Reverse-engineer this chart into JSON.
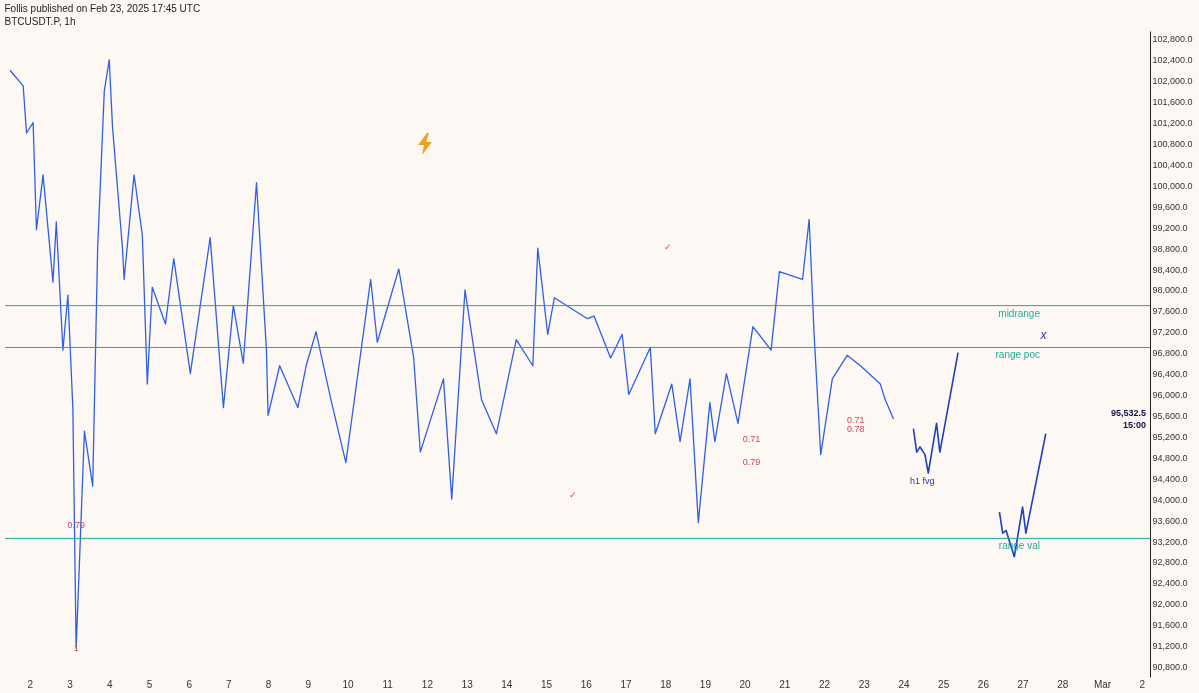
{
  "chart_data": {
    "type": "line",
    "title": "Follis published on Feb 23, 2025 17:45 UTC",
    "subtitle": "BTCUSDT.P, 1h",
    "xlim": [
      "2025-02-01T09:00",
      "2025-03-02T05:00"
    ],
    "xticks": [
      {
        "value": "2025-02-02T00:00",
        "label": "2"
      },
      {
        "value": "2025-02-03T00:00",
        "label": "3"
      },
      {
        "value": "2025-02-04T00:00",
        "label": "4"
      },
      {
        "value": "2025-02-05T00:00",
        "label": "5"
      },
      {
        "value": "2025-02-06T00:00",
        "label": "6"
      },
      {
        "value": "2025-02-07T00:00",
        "label": "7"
      },
      {
        "value": "2025-02-08T00:00",
        "label": "8"
      },
      {
        "value": "2025-02-09T00:00",
        "label": "9"
      },
      {
        "value": "2025-02-10T00:00",
        "label": "10"
      },
      {
        "value": "2025-02-11T00:00",
        "label": "11"
      },
      {
        "value": "2025-02-12T00:00",
        "label": "12"
      },
      {
        "value": "2025-02-13T00:00",
        "label": "13"
      },
      {
        "value": "2025-02-14T00:00",
        "label": "14"
      },
      {
        "value": "2025-02-15T00:00",
        "label": "15"
      },
      {
        "value": "2025-02-16T00:00",
        "label": "16"
      },
      {
        "value": "2025-02-17T00:00",
        "label": "17"
      },
      {
        "value": "2025-02-18T00:00",
        "label": "18"
      },
      {
        "value": "2025-02-19T00:00",
        "label": "19"
      },
      {
        "value": "2025-02-20T00:00",
        "label": "20"
      },
      {
        "value": "2025-02-21T00:00",
        "label": "21"
      },
      {
        "value": "2025-02-22T00:00",
        "label": "22"
      },
      {
        "value": "2025-02-23T00:00",
        "label": "23"
      },
      {
        "value": "2025-02-24T00:00",
        "label": "24"
      },
      {
        "value": "2025-02-25T00:00",
        "label": "25"
      },
      {
        "value": "2025-02-26T00:00",
        "label": "26"
      },
      {
        "value": "2025-02-27T00:00",
        "label": "27"
      },
      {
        "value": "2025-02-28T00:00",
        "label": "28"
      },
      {
        "value": "2025-03-01T00:00",
        "label": "Mar"
      },
      {
        "value": "2025-03-02T00:00",
        "label": "2"
      }
    ],
    "ylim": [
      90600,
      102950
    ],
    "yticks": [
      {
        "value": 90800,
        "label": "90,800.0"
      },
      {
        "value": 91200,
        "label": "91,200.0"
      },
      {
        "value": 91600,
        "label": "91,600.0"
      },
      {
        "value": 92000,
        "label": "92,000.0"
      },
      {
        "value": 92400,
        "label": "92,400.0"
      },
      {
        "value": 92800,
        "label": "92,800.0"
      },
      {
        "value": 93200,
        "label": "93,200.0"
      },
      {
        "value": 93600,
        "label": "93,600.0"
      },
      {
        "value": 94000,
        "label": "94,000.0"
      },
      {
        "value": 94400,
        "label": "94,400.0"
      },
      {
        "value": 94800,
        "label": "94,800.0"
      },
      {
        "value": 95200,
        "label": "95,200.0"
      },
      {
        "value": 95600,
        "label": "95,600.0"
      },
      {
        "value": 96000,
        "label": "96,000.0"
      },
      {
        "value": 96400,
        "label": "96,400.0"
      },
      {
        "value": 96800,
        "label": "96,800.0"
      },
      {
        "value": 97200,
        "label": "97,200.0"
      },
      {
        "value": 97600,
        "label": "97,600.0"
      },
      {
        "value": 98000,
        "label": "98,000.0"
      },
      {
        "value": 98400,
        "label": "98,400.0"
      },
      {
        "value": 98800,
        "label": "98,800.0"
      },
      {
        "value": 99200,
        "label": "99,200.0"
      },
      {
        "value": 99600,
        "label": "99,600.0"
      },
      {
        "value": 100000,
        "label": "100,000.0"
      },
      {
        "value": 100400,
        "label": "100,400.0"
      },
      {
        "value": 100800,
        "label": "100,800.0"
      },
      {
        "value": 101200,
        "label": "101,200.0"
      },
      {
        "value": 101600,
        "label": "101,600.0"
      },
      {
        "value": 102000,
        "label": "102,000.0"
      },
      {
        "value": 102400,
        "label": "102,400.0"
      },
      {
        "value": 102800,
        "label": "102,800.0"
      }
    ],
    "series": [
      {
        "color": "#2f5fe8",
        "x": [
          "2025-02-01T12:00",
          "2025-02-01T20:00",
          "2025-02-01T22:00",
          "2025-02-02T02:00",
          "2025-02-02T04:00",
          "2025-02-02T08:00",
          "2025-02-02T14:00",
          "2025-02-02T16:00",
          "2025-02-02T20:00",
          "2025-02-02T23:00",
          "2025-02-03T02:00",
          "2025-02-03T04:00",
          "2025-02-03T06:00",
          "2025-02-03T09:00",
          "2025-02-03T14:00",
          "2025-02-03T17:00",
          "2025-02-03T21:00",
          "2025-02-04T00:00",
          "2025-02-04T02:00",
          "2025-02-04T08:00",
          "2025-02-04T09:00",
          "2025-02-04T15:00",
          "2025-02-04T20:00",
          "2025-02-04T23:00",
          "2025-02-05T02:00",
          "2025-02-05T10:00",
          "2025-02-05T15:00",
          "2025-02-06T01:00",
          "2025-02-06T13:00",
          "2025-02-06T21:00",
          "2025-02-07T03:00",
          "2025-02-07T09:00",
          "2025-02-07T17:00",
          "2025-02-07T23:00",
          "2025-02-08T00:00",
          "2025-02-08T07:00",
          "2025-02-08T18:00",
          "2025-02-08T23:00",
          "2025-02-09T05:00",
          "2025-02-09T14:00",
          "2025-02-09T23:00",
          "2025-02-10T14:00",
          "2025-02-10T18:00",
          "2025-02-11T07:00",
          "2025-02-11T16:00",
          "2025-02-11T20:00",
          "2025-02-12T10:00",
          "2025-02-12T15:00",
          "2025-02-12T23:00",
          "2025-02-13T09:00",
          "2025-02-13T18:00",
          "2025-02-14T06:00",
          "2025-02-14T16:00",
          "2025-02-14T19:00",
          "2025-02-15T01:00",
          "2025-02-15T05:00",
          "2025-02-16T01:00",
          "2025-02-16T05:00",
          "2025-02-16T15:00",
          "2025-02-16T22:00",
          "2025-02-17T02:00",
          "2025-02-17T15:00",
          "2025-02-17T18:00",
          "2025-02-18T04:00",
          "2025-02-18T09:00",
          "2025-02-18T15:00",
          "2025-02-18T20:00",
          "2025-02-19T03:00",
          "2025-02-19T06:00",
          "2025-02-19T13:00",
          "2025-02-19T20:00",
          "2025-02-20T05:00",
          "2025-02-20T16:00",
          "2025-02-20T21:00",
          "2025-02-21T11:00",
          "2025-02-21T15:00",
          "2025-02-21T18:00",
          "2025-02-21T22:00",
          "2025-02-22T05:00",
          "2025-02-22T14:00",
          "2025-02-22T22:00",
          "2025-02-23T10:00",
          "2025-02-23T13:00",
          "2025-02-23T18:00"
        ],
        "values": [
          102200,
          101900,
          101000,
          101200,
          99150,
          100200,
          98150,
          99300,
          96850,
          97900,
          95750,
          91150,
          92800,
          95300,
          94250,
          98800,
          101800,
          102400,
          101100,
          98800,
          98200,
          100200,
          99050,
          96200,
          98050,
          97350,
          98600,
          96400,
          99000,
          95750,
          97700,
          96600,
          100050,
          96850,
          95600,
          96550,
          95750,
          96550,
          97200,
          95900,
          94700,
          98200,
          97000,
          98400,
          96700,
          94900,
          96300,
          94000,
          98000,
          95900,
          95250,
          97050,
          96550,
          98800,
          97150,
          97850,
          97450,
          97500,
          96700,
          97150,
          96000,
          96900,
          95250,
          96200,
          95100,
          96300,
          93550,
          95850,
          95100,
          96400,
          95450,
          97300,
          96850,
          98350,
          98200,
          99350,
          97150,
          94850,
          96300,
          96750,
          96550,
          96200,
          95900,
          95532.5
        ]
      },
      {
        "color": "#1f3fbf",
        "x": [
          "2025-02-24T06:00",
          "2025-02-24T08:00",
          "2025-02-24T10:00",
          "2025-02-24T13:00",
          "2025-02-24T15:00",
          "2025-02-24T20:00",
          "2025-02-24T22:00",
          "2025-02-25T09:00"
        ],
        "values": [
          95350,
          94900,
          95000,
          94850,
          94500,
          95450,
          94900,
          96800
        ]
      },
      {
        "color": "#1f3fbf",
        "x": [
          "2025-02-26T10:00",
          "2025-02-26T12:00",
          "2025-02-26T14:00",
          "2025-02-26T19:00",
          "2025-02-27T00:00",
          "2025-02-27T02:00",
          "2025-02-27T14:00"
        ],
        "values": [
          93750,
          93350,
          93400,
          92900,
          93850,
          93350,
          95250
        ]
      }
    ],
    "ref_lines": [
      {
        "axis": "y",
        "value": 97700,
        "label": "midrange",
        "color": "#22ab94"
      },
      {
        "axis": "y",
        "value": 96900,
        "label": "range poc",
        "color": "#22ab94"
      },
      {
        "axis": "y",
        "value": 93250,
        "label": "range val",
        "color": "#22ab94"
      }
    ],
    "annotations": [
      "95,532.5",
      "15:00",
      {
        "text": "0.79",
        "x": "2025-02-03T04:00",
        "y": 93500
      },
      {
        "text": "1",
        "x": "2025-02-03T04:00",
        "y": 91150
      },
      "✓",
      "✓",
      "0.71",
      "0.79",
      "0.71",
      "0.78",
      "h1 fvg",
      "x"
    ]
  }
}
